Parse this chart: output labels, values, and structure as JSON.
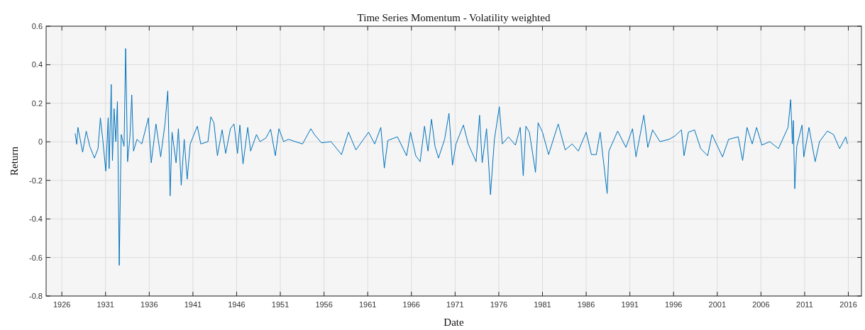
{
  "chart_data": {
    "type": "line",
    "title": "Time Series Momentum - Volatility weighted",
    "xlabel": "Date",
    "ylabel": "Return",
    "xlim": [
      1924.2,
      2017.5
    ],
    "xticks": [
      1926,
      1931,
      1936,
      1941,
      1946,
      1951,
      1956,
      1961,
      1966,
      1971,
      1976,
      1981,
      1986,
      1991,
      1996,
      2001,
      2006,
      2011,
      2016
    ],
    "ylim": [
      -0.8,
      0.6
    ],
    "yticks": [
      -0.8,
      -0.6,
      -0.4,
      -0.2,
      0,
      0.2,
      0.4,
      0.6
    ],
    "grid": true,
    "series": [
      {
        "color": "#0072bd",
        "x": [
          1927.52,
          1927.7,
          1927.84,
          1928.1,
          1928.38,
          1928.79,
          1929.19,
          1929.73,
          1930.14,
          1930.41,
          1930.68,
          1931.03,
          1931.3,
          1931.41,
          1931.65,
          1931.79,
          1931.98,
          1932.17,
          1932.36,
          1932.57,
          1932.79,
          1933.12,
          1933.3,
          1933.52,
          1933.79,
          1934.0,
          1934.2,
          1934.6,
          1935.15,
          1935.9,
          1936.23,
          1936.77,
          1937.31,
          1937.8,
          1938.12,
          1938.39,
          1938.61,
          1939.07,
          1939.34,
          1939.66,
          1940.0,
          1940.34,
          1940.69,
          1941.5,
          1941.9,
          1942.72,
          1943.05,
          1943.4,
          1943.8,
          1944.34,
          1944.75,
          1945.29,
          1945.7,
          1946.1,
          1946.37,
          1946.73,
          1947.27,
          1947.6,
          1948.27,
          1948.67,
          1949.35,
          1949.89,
          1950.43,
          1950.84,
          1951.38,
          1951.92,
          1952.73,
          1953.54,
          1954.49,
          1954.9,
          1955.7,
          1956.8,
          1958.0,
          1958.8,
          1959.65,
          1961.1,
          1961.8,
          1962.5,
          1962.9,
          1963.3,
          1964.4,
          1965.45,
          1965.9,
          1966.5,
          1967.0,
          1967.5,
          1967.9,
          1968.3,
          1968.7,
          1969.1,
          1969.8,
          1970.3,
          1970.7,
          1971.1,
          1971.95,
          1972.5,
          1973.4,
          1973.8,
          1974.1,
          1974.6,
          1975.05,
          1975.5,
          1976.06,
          1976.4,
          1977.1,
          1977.9,
          1978.45,
          1978.8,
          1979.1,
          1979.5,
          1980.2,
          1980.5,
          1981.0,
          1981.7,
          1982.8,
          1983.6,
          1984.4,
          1985.1,
          1986.0,
          1986.6,
          1987.16,
          1987.6,
          1988.4,
          1988.6,
          1989.6,
          1990.55,
          1991.3,
          1991.7,
          1992.6,
          1993.05,
          1993.6,
          1994.45,
          1995.5,
          1996.2,
          1996.9,
          1997.2,
          1997.7,
          1998.4,
          1999.1,
          1999.9,
          2000.4,
          2001.6,
          2002.3,
          2003.4,
          2003.9,
          2004.4,
          2005.0,
          2005.5,
          2006.1,
          2007.0,
          2008.0,
          2009.1,
          2009.4,
          2009.6,
          2009.7,
          2009.87,
          2010.1,
          2010.7,
          2010.9,
          2011.5,
          2012.2,
          2012.7,
          2013.6,
          2014.3,
          2015.0,
          2015.7,
          2015.9
        ],
        "values": [
          0.044,
          -0.013,
          0.075,
          0.013,
          -0.054,
          0.056,
          -0.023,
          -0.084,
          -0.035,
          0.124,
          0.013,
          -0.152,
          0.124,
          -0.139,
          0.298,
          -0.097,
          0.172,
          0.001,
          0.209,
          -0.641,
          0.038,
          -0.023,
          0.484,
          -0.103,
          0.026,
          0.243,
          -0.048,
          0.013,
          -0.011,
          0.124,
          -0.109,
          0.093,
          -0.078,
          0.093,
          0.264,
          -0.28,
          0.05,
          -0.109,
          0.068,
          -0.225,
          0.013,
          -0.194,
          -0.011,
          0.081,
          -0.011,
          0.001,
          0.13,
          0.099,
          -0.072,
          0.062,
          -0.06,
          0.068,
          0.093,
          -0.06,
          0.087,
          -0.115,
          0.075,
          -0.048,
          0.038,
          0.001,
          0.02,
          0.065,
          -0.072,
          0.068,
          0.001,
          0.013,
          0.001,
          -0.011,
          0.068,
          0.038,
          -0.005,
          0.001,
          -0.066,
          0.05,
          -0.042,
          0.05,
          -0.011,
          0.075,
          -0.136,
          0.007,
          0.026,
          -0.072,
          0.05,
          -0.072,
          -0.103,
          0.081,
          -0.048,
          0.117,
          -0.023,
          -0.084,
          0.013,
          0.148,
          -0.121,
          -0.011,
          0.087,
          -0.011,
          -0.103,
          0.138,
          -0.109,
          0.068,
          -0.274,
          0.013,
          0.182,
          -0.011,
          0.026,
          -0.017,
          0.075,
          -0.176,
          0.081,
          0.05,
          -0.158,
          0.099,
          0.05,
          -0.066,
          0.093,
          -0.042,
          -0.011,
          -0.048,
          0.05,
          -0.066,
          -0.066,
          0.05,
          -0.268,
          -0.048,
          0.056,
          -0.029,
          0.068,
          -0.078,
          0.139,
          -0.029,
          0.062,
          0.001,
          0.013,
          0.032,
          0.062,
          -0.072,
          0.05,
          0.062,
          -0.035,
          -0.072,
          0.038,
          -0.078,
          0.013,
          0.026,
          -0.097,
          0.075,
          -0.011,
          0.075,
          -0.017,
          0.001,
          -0.035,
          0.075,
          0.219,
          -0.011,
          0.111,
          -0.243,
          -0.023,
          0.087,
          -0.078,
          0.075,
          -0.103,
          0.001,
          0.056,
          0.038,
          -0.035,
          0.026,
          -0.011
        ]
      }
    ]
  }
}
